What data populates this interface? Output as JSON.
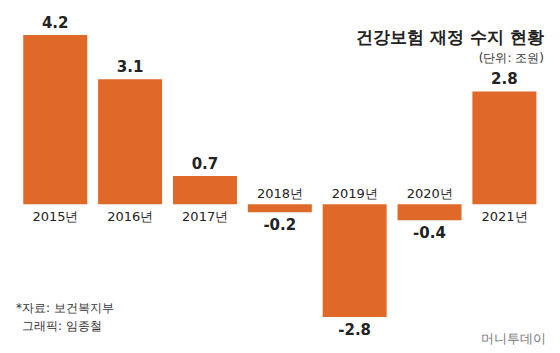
{
  "chart_data": {
    "type": "bar",
    "title": "건강보험 재정 수지 현황",
    "subtitle": "(단위: 조원)",
    "categories": [
      "2015년",
      "2016년",
      "2017년",
      "2018년",
      "2019년",
      "2020년",
      "2021년"
    ],
    "values": [
      4.2,
      3.1,
      0.7,
      -0.2,
      -2.8,
      -0.4,
      2.8
    ],
    "color": "#E0692A",
    "ylim": [
      -2.8,
      4.2
    ],
    "grid": false,
    "data_labels": true,
    "tick_labels": "x",
    "annotations": [
      "*자료: 보건복지부",
      "그래픽: 임종철",
      "머니투데이"
    ]
  }
}
